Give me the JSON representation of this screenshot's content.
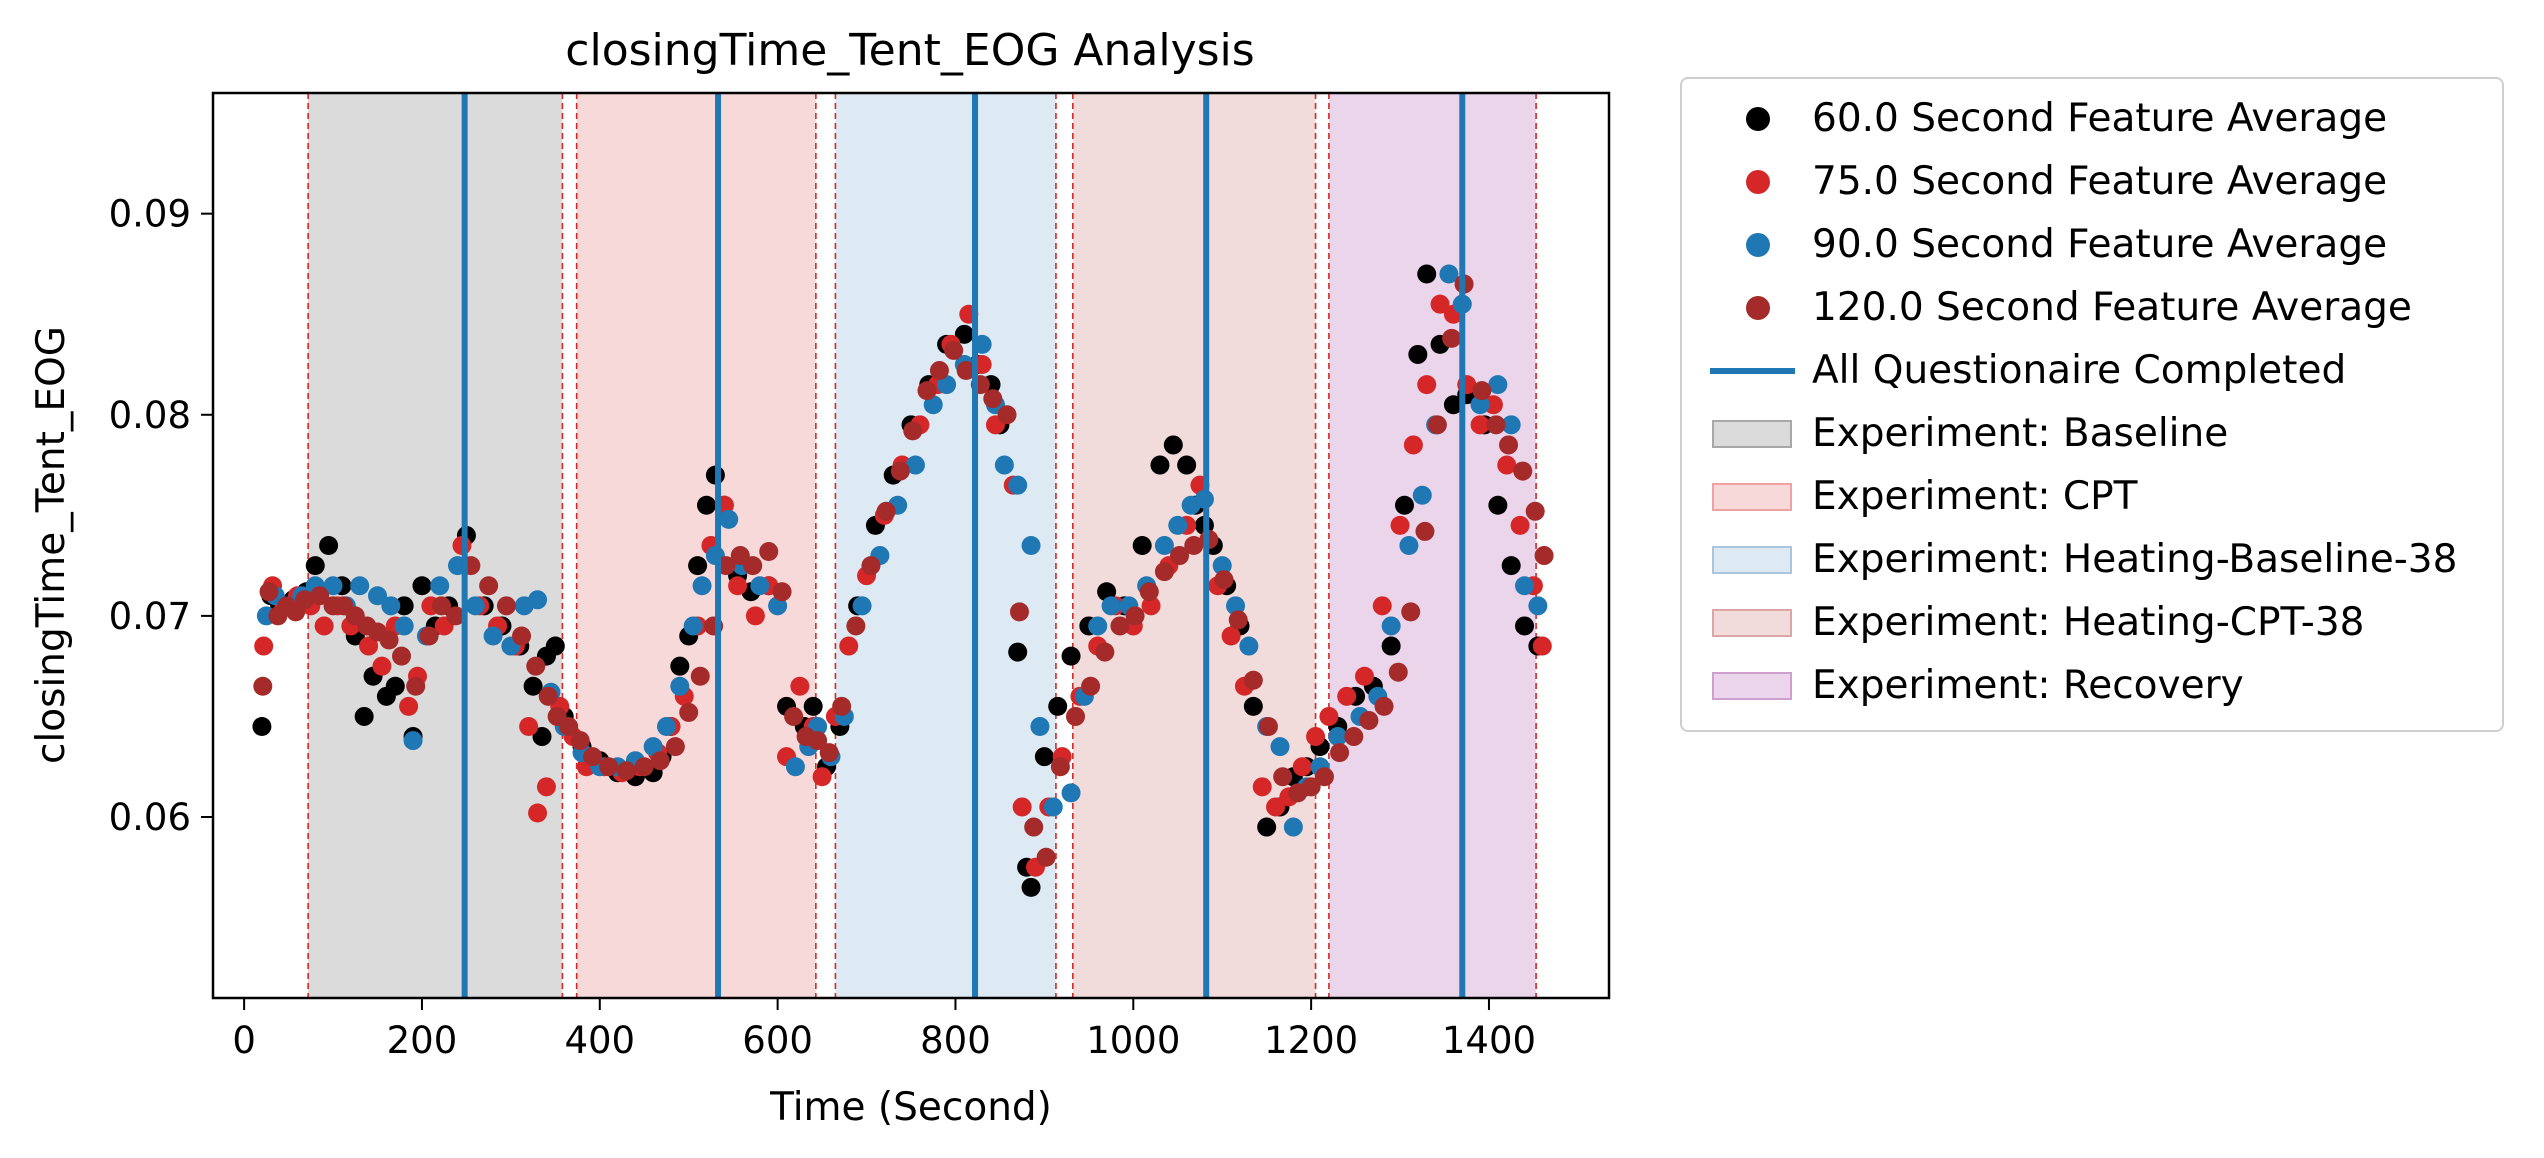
{
  "chart_data": {
    "type": "scatter",
    "title": "closingTime_Tent_EOG Analysis",
    "xlabel": "Time (Second)",
    "ylabel": "closingTime_Tent_EOG",
    "xlim": [
      -35,
      1535
    ],
    "ylim": [
      0.051,
      0.096
    ],
    "xticks": [
      0,
      200,
      400,
      600,
      800,
      1000,
      1200,
      1400
    ],
    "yticks": [
      0.06,
      0.07,
      0.08,
      0.09
    ],
    "ytick_labels": [
      "0.06",
      "0.07",
      "0.08",
      "0.09"
    ],
    "legend_position": "outside-right-top",
    "grid": false,
    "questionnaire_lines": [
      248,
      533,
      822,
      1082,
      1370
    ],
    "questionnaire_color": "#1f77b4",
    "boundary_lines": [
      72,
      358,
      374,
      643,
      665,
      913,
      932,
      1205,
      1220,
      1453
    ],
    "boundary_color": "#d62728",
    "shaded_regions": [
      {
        "name": "Experiment: Baseline",
        "start": 72,
        "end": 358,
        "color": "#bdbdbd"
      },
      {
        "name": "Experiment: CPT",
        "start": 374,
        "end": 643,
        "color": "#f2b9bb"
      },
      {
        "name": "Experiment: Heating-Baseline-38",
        "start": 665,
        "end": 913,
        "color": "#c1d7ea"
      },
      {
        "name": "Experiment: Heating-CPT-38",
        "start": 932,
        "end": 1205,
        "color": "#e5bebd"
      },
      {
        "name": "Experiment: Recovery",
        "start": 1220,
        "end": 1453,
        "color": "#d9b3d9"
      }
    ],
    "series": [
      {
        "name": "60.0 Second Feature Average",
        "color": "#000000",
        "x": [
          20,
          30,
          40,
          55,
          70,
          80,
          95,
          110,
          125,
          135,
          145,
          160,
          170,
          180,
          190,
          200,
          215,
          230,
          250,
          270,
          290,
          310,
          325,
          335,
          340,
          350,
          360,
          380,
          400,
          420,
          440,
          460,
          470,
          480,
          490,
          500,
          510,
          520,
          530,
          540,
          555,
          570,
          590,
          610,
          630,
          640,
          655,
          670,
          690,
          710,
          730,
          750,
          770,
          790,
          810,
          825,
          840,
          850,
          870,
          880,
          885,
          900,
          915,
          930,
          950,
          970,
          990,
          1010,
          1030,
          1045,
          1060,
          1070,
          1080,
          1090,
          1105,
          1120,
          1135,
          1150,
          1165,
          1180,
          1195,
          1210,
          1230,
          1250,
          1270,
          1290,
          1305,
          1320,
          1330,
          1345,
          1360,
          1375,
          1395,
          1410,
          1425,
          1440,
          1455
        ],
        "y": [
          0.0645,
          0.071,
          0.0705,
          0.0708,
          0.0712,
          0.0725,
          0.0735,
          0.0715,
          0.069,
          0.065,
          0.067,
          0.066,
          0.0665,
          0.0705,
          0.064,
          0.0715,
          0.0695,
          0.0705,
          0.074,
          0.0705,
          0.0695,
          0.0685,
          0.0665,
          0.064,
          0.068,
          0.0685,
          0.065,
          0.0635,
          0.0628,
          0.0622,
          0.062,
          0.0622,
          0.063,
          0.0645,
          0.0675,
          0.069,
          0.0725,
          0.0755,
          0.077,
          0.0755,
          0.072,
          0.0712,
          0.0715,
          0.0655,
          0.0645,
          0.0655,
          0.0625,
          0.0645,
          0.0705,
          0.0745,
          0.077,
          0.0795,
          0.0815,
          0.0835,
          0.084,
          0.0825,
          0.0815,
          0.0795,
          0.0682,
          0.0575,
          0.0565,
          0.063,
          0.0655,
          0.068,
          0.0695,
          0.0712,
          0.0705,
          0.0735,
          0.0775,
          0.0785,
          0.0775,
          0.0755,
          0.0745,
          0.0735,
          0.0715,
          0.0695,
          0.0655,
          0.0595,
          0.0605,
          0.062,
          0.0625,
          0.0635,
          0.0645,
          0.066,
          0.0665,
          0.0685,
          0.0755,
          0.083,
          0.087,
          0.0835,
          0.0805,
          0.081,
          0.0795,
          0.0755,
          0.0725,
          0.0695,
          0.0685
        ]
      },
      {
        "name": "75.0 Second Feature Average",
        "color": "#d62728",
        "x": [
          22,
          32,
          45,
          60,
          75,
          90,
          105,
          120,
          140,
          155,
          170,
          185,
          195,
          210,
          225,
          245,
          265,
          285,
          305,
          320,
          330,
          340,
          355,
          370,
          385,
          405,
          425,
          445,
          465,
          480,
          495,
          510,
          525,
          540,
          555,
          575,
          590,
          610,
          625,
          640,
          650,
          665,
          680,
          700,
          720,
          740,
          760,
          780,
          795,
          815,
          830,
          845,
          865,
          875,
          890,
          905,
          920,
          940,
          960,
          980,
          1000,
          1020,
          1040,
          1060,
          1075,
          1095,
          1110,
          1125,
          1145,
          1160,
          1175,
          1190,
          1205,
          1220,
          1240,
          1260,
          1280,
          1300,
          1315,
          1330,
          1345,
          1360,
          1375,
          1390,
          1405,
          1420,
          1435,
          1450,
          1460
        ],
        "y": [
          0.0685,
          0.0715,
          0.0705,
          0.071,
          0.0705,
          0.0695,
          0.0705,
          0.0695,
          0.0685,
          0.0675,
          0.0695,
          0.0655,
          0.067,
          0.0705,
          0.0695,
          0.0735,
          0.0705,
          0.0695,
          0.0685,
          0.0645,
          0.0602,
          0.0615,
          0.0655,
          0.064,
          0.0625,
          0.0625,
          0.0622,
          0.0625,
          0.0632,
          0.0645,
          0.066,
          0.0695,
          0.0735,
          0.0755,
          0.0715,
          0.07,
          0.0715,
          0.063,
          0.0665,
          0.0645,
          0.062,
          0.065,
          0.0685,
          0.072,
          0.075,
          0.0775,
          0.0795,
          0.0815,
          0.0835,
          0.085,
          0.0825,
          0.0795,
          0.0765,
          0.0605,
          0.0575,
          0.0605,
          0.063,
          0.066,
          0.0685,
          0.0705,
          0.0695,
          0.0705,
          0.0725,
          0.0745,
          0.0765,
          0.0715,
          0.069,
          0.0665,
          0.0615,
          0.0605,
          0.061,
          0.0625,
          0.064,
          0.065,
          0.066,
          0.067,
          0.0705,
          0.0745,
          0.0785,
          0.0815,
          0.0855,
          0.085,
          0.0815,
          0.0795,
          0.0805,
          0.0775,
          0.0745,
          0.0715,
          0.0685
        ]
      },
      {
        "name": "90.0 Second Feature Average",
        "color": "#1f77b4",
        "x": [
          25,
          35,
          50,
          65,
          80,
          100,
          115,
          130,
          150,
          165,
          180,
          190,
          205,
          220,
          240,
          260,
          280,
          300,
          315,
          330,
          345,
          360,
          380,
          400,
          420,
          440,
          460,
          475,
          490,
          505,
          515,
          530,
          545,
          560,
          580,
          600,
          620,
          635,
          645,
          660,
          675,
          695,
          715,
          735,
          755,
          775,
          790,
          810,
          830,
          845,
          855,
          870,
          885,
          895,
          910,
          930,
          945,
          960,
          975,
          995,
          1015,
          1035,
          1050,
          1065,
          1080,
          1100,
          1115,
          1130,
          1150,
          1165,
          1180,
          1195,
          1210,
          1230,
          1255,
          1275,
          1290,
          1310,
          1325,
          1340,
          1355,
          1370,
          1390,
          1410,
          1425,
          1440,
          1455
        ],
        "y": [
          0.07,
          0.071,
          0.0705,
          0.071,
          0.0715,
          0.0715,
          0.0705,
          0.0715,
          0.071,
          0.0705,
          0.0695,
          0.0638,
          0.069,
          0.0715,
          0.0725,
          0.0705,
          0.069,
          0.0685,
          0.0705,
          0.0708,
          0.0662,
          0.0645,
          0.0632,
          0.0625,
          0.0625,
          0.0628,
          0.0635,
          0.0645,
          0.0665,
          0.0695,
          0.0715,
          0.073,
          0.0748,
          0.0725,
          0.0715,
          0.0705,
          0.0625,
          0.0635,
          0.0645,
          0.063,
          0.065,
          0.0705,
          0.073,
          0.0755,
          0.0775,
          0.0805,
          0.0815,
          0.0825,
          0.0835,
          0.0805,
          0.0775,
          0.0765,
          0.0735,
          0.0645,
          0.0605,
          0.0612,
          0.066,
          0.0695,
          0.0705,
          0.0705,
          0.0715,
          0.0735,
          0.0745,
          0.0755,
          0.0758,
          0.0725,
          0.0705,
          0.0685,
          0.0645,
          0.0635,
          0.0595,
          0.0615,
          0.0625,
          0.064,
          0.065,
          0.066,
          0.0695,
          0.0735,
          0.076,
          0.0795,
          0.087,
          0.0855,
          0.0805,
          0.0815,
          0.0795,
          0.0715,
          0.0705
        ]
      },
      {
        "name": "120.0 Second Feature Average",
        "color": "#a52a2a",
        "x": [
          21,
          28,
          38,
          48,
          58,
          68,
          85,
          100,
          112,
          125,
          138,
          150,
          163,
          177,
          193,
          208,
          222,
          238,
          255,
          275,
          295,
          312,
          328,
          342,
          352,
          365,
          378,
          392,
          410,
          430,
          450,
          468,
          485,
          500,
          513,
          528,
          542,
          558,
          572,
          590,
          605,
          618,
          632,
          645,
          658,
          672,
          688,
          705,
          722,
          738,
          752,
          768,
          782,
          798,
          812,
          828,
          842,
          858,
          872,
          888,
          902,
          918,
          935,
          952,
          968,
          985,
          1002,
          1018,
          1035,
          1052,
          1068,
          1085,
          1102,
          1118,
          1135,
          1152,
          1168,
          1185,
          1200,
          1215,
          1232,
          1248,
          1265,
          1282,
          1298,
          1312,
          1328,
          1342,
          1358,
          1372,
          1392,
          1408,
          1422,
          1438,
          1452,
          1462
        ],
        "y": [
          0.0665,
          0.0712,
          0.07,
          0.0705,
          0.0702,
          0.0708,
          0.071,
          0.0705,
          0.0705,
          0.07,
          0.0695,
          0.0692,
          0.0688,
          0.068,
          0.0665,
          0.069,
          0.0705,
          0.07,
          0.0725,
          0.0715,
          0.0705,
          0.069,
          0.0675,
          0.066,
          0.065,
          0.0645,
          0.0638,
          0.063,
          0.0625,
          0.0623,
          0.0625,
          0.0628,
          0.0635,
          0.0652,
          0.067,
          0.0695,
          0.0725,
          0.073,
          0.0725,
          0.0732,
          0.0712,
          0.065,
          0.064,
          0.0638,
          0.0632,
          0.0655,
          0.0695,
          0.0725,
          0.0752,
          0.0772,
          0.0792,
          0.0812,
          0.0822,
          0.0832,
          0.0822,
          0.0815,
          0.0808,
          0.08,
          0.0702,
          0.0595,
          0.058,
          0.0625,
          0.065,
          0.0665,
          0.0682,
          0.0695,
          0.07,
          0.0712,
          0.0722,
          0.073,
          0.0735,
          0.0738,
          0.0718,
          0.0698,
          0.0668,
          0.0645,
          0.062,
          0.0612,
          0.0615,
          0.062,
          0.0632,
          0.064,
          0.0648,
          0.0655,
          0.0672,
          0.0702,
          0.0742,
          0.0795,
          0.0838,
          0.0865,
          0.0812,
          0.0795,
          0.0785,
          0.0772,
          0.0752,
          0.073
        ]
      }
    ]
  },
  "legend": {
    "items": [
      {
        "label": "60.0 Second Feature Average"
      },
      {
        "label": "75.0 Second Feature Average"
      },
      {
        "label": "90.0 Second Feature Average"
      },
      {
        "label": "120.0 Second Feature Average"
      },
      {
        "label": "All Questionaire Completed"
      },
      {
        "label": "Experiment: Baseline"
      },
      {
        "label": "Experiment: CPT"
      },
      {
        "label": "Experiment: Heating-Baseline-38"
      },
      {
        "label": "Experiment: Heating-CPT-38"
      },
      {
        "label": "Experiment: Recovery"
      }
    ]
  }
}
